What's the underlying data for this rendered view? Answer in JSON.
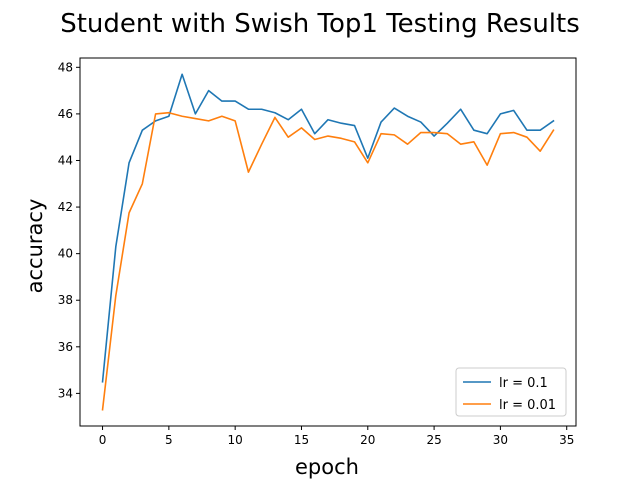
{
  "chart_data": {
    "type": "line",
    "title": "Student with Swish Top1 Testing Results",
    "xlabel": "epoch",
    "ylabel": "accuracy",
    "xlim": [
      -1.7,
      35.7
    ],
    "ylim": [
      32.6,
      48.4
    ],
    "xticks": [
      0,
      5,
      10,
      15,
      20,
      25,
      30,
      35
    ],
    "yticks": [
      34,
      36,
      38,
      40,
      42,
      44,
      46,
      48
    ],
    "grid": false,
    "legend_position": "lower-right",
    "x": [
      0,
      1,
      2,
      3,
      4,
      5,
      6,
      7,
      8,
      9,
      10,
      11,
      12,
      13,
      14,
      15,
      16,
      17,
      18,
      19,
      20,
      21,
      22,
      23,
      24,
      25,
      26,
      27,
      28,
      29,
      30,
      31,
      32,
      33,
      34
    ],
    "series": [
      {
        "name": "lr = 0.1",
        "color": "#1f77b4",
        "values": [
          34.5,
          40.3,
          43.9,
          45.3,
          45.7,
          45.9,
          47.7,
          46.0,
          47.0,
          46.55,
          46.55,
          46.2,
          46.2,
          46.05,
          45.75,
          46.2,
          45.15,
          45.75,
          45.6,
          45.5,
          44.1,
          45.65,
          46.25,
          45.9,
          45.65,
          45.05,
          45.6,
          46.2,
          45.3,
          45.15,
          46.0,
          46.15,
          45.3,
          45.3,
          45.7
        ]
      },
      {
        "name": "lr = 0.01",
        "color": "#ff7f0e",
        "values": [
          33.3,
          38.2,
          41.75,
          43.0,
          46.0,
          46.05,
          45.9,
          45.8,
          45.7,
          45.9,
          45.7,
          43.5,
          44.7,
          45.85,
          45.0,
          45.4,
          44.9,
          45.05,
          44.95,
          44.8,
          43.9,
          45.15,
          45.1,
          44.7,
          45.2,
          45.2,
          45.15,
          44.7,
          44.8,
          43.8,
          45.15,
          45.2,
          45.0,
          44.4,
          45.3
        ]
      }
    ]
  }
}
